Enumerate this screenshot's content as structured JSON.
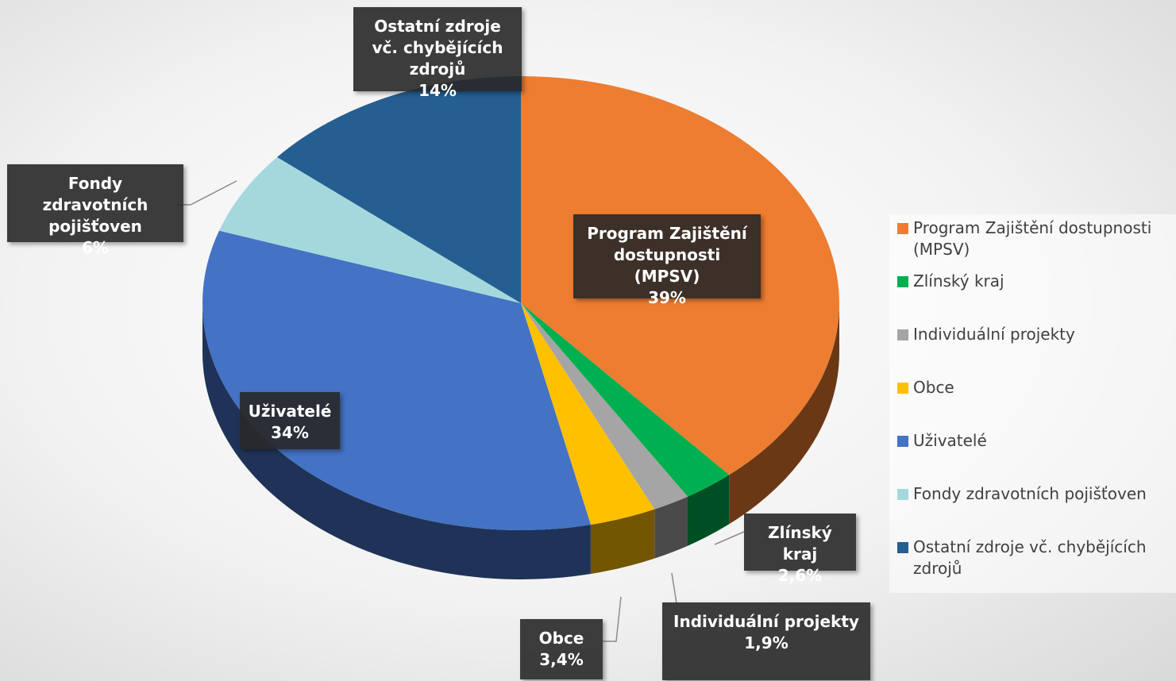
{
  "chart_data": {
    "type": "pie",
    "categories": [
      "Program Zajištění dostupnosti (MPSV)",
      "Zlínský kraj",
      "Individuální projekty",
      "Obce",
      "Uživatelé",
      "Fondy zdravotních pojišťoven",
      "Ostatní zdroje vč. chybějících zdrojů"
    ],
    "values": [
      39,
      2.6,
      1.9,
      3.4,
      34,
      6,
      14
    ],
    "value_labels": [
      "39%",
      "2,6%",
      "1,9%",
      "3,4%",
      "34%",
      "6%",
      "14%"
    ],
    "colors": [
      "#ed7d31",
      "#00b050",
      "#a5a5a5",
      "#ffc000",
      "#4472c4",
      "#a5d8dd",
      "#255e91"
    ],
    "legend": "right"
  }
}
